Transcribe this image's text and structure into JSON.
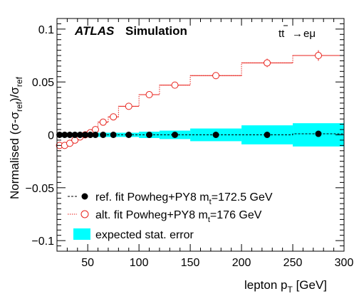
{
  "chart_data": {
    "type": "scatter",
    "title": "",
    "brand": {
      "bold_italic": "ATLAS",
      "rest": "Simulation"
    },
    "process": {
      "main": "tt",
      "arrow": "→",
      "final": "eμ"
    },
    "ylabel": {
      "main": "Normalised (σ-σ",
      "sub1": "ref",
      "mid": ")/σ",
      "sub2": "ref"
    },
    "xlabel": {
      "main": "lepton p",
      "sub": "T",
      "unit": " [GeV]"
    },
    "xlim": [
      20,
      300
    ],
    "ylim": [
      -0.11,
      0.11
    ],
    "xticks": [
      50,
      100,
      150,
      200,
      250,
      300
    ],
    "yticks": [
      -0.1,
      -0.05,
      0,
      0.05,
      0.1
    ],
    "ytick_labels": [
      "−0.1",
      "−0.05",
      "0",
      "0.05",
      "0.1"
    ],
    "xtick_labels": [
      "50",
      "100",
      "150",
      "200",
      "250",
      "300"
    ],
    "bins": [
      [
        20,
        25
      ],
      [
        25,
        30
      ],
      [
        30,
        35
      ],
      [
        35,
        40
      ],
      [
        40,
        45
      ],
      [
        45,
        50
      ],
      [
        50,
        55
      ],
      [
        55,
        60
      ],
      [
        60,
        70
      ],
      [
        70,
        80
      ],
      [
        80,
        100
      ],
      [
        100,
        120
      ],
      [
        120,
        150
      ],
      [
        150,
        200
      ],
      [
        200,
        250
      ],
      [
        250,
        300
      ]
    ],
    "centers": [
      22.5,
      27.5,
      32.5,
      37.5,
      42.5,
      47.5,
      52.5,
      57.5,
      65,
      75,
      90,
      110,
      135,
      175,
      225,
      275
    ],
    "stat_error": [
      0.002,
      0.002,
      0.002,
      0.002,
      0.002,
      0.002,
      0.002,
      0.002,
      0.002,
      0.002,
      0.002,
      0.003,
      0.004,
      0.006,
      0.009,
      0.011
    ],
    "series": [
      {
        "name": "ref. fit Powheg+PY8 m",
        "name_sub": "t",
        "name_tail": "=172.5 GeV",
        "color": "#000000",
        "values": [
          0,
          0,
          0,
          0,
          0,
          0,
          0,
          0,
          0,
          0,
          0,
          0,
          0,
          0,
          0,
          0.001
        ],
        "errors": [
          0,
          0,
          0,
          0,
          0,
          0,
          0,
          0,
          0,
          0,
          0,
          0,
          0,
          0,
          0,
          0
        ]
      },
      {
        "name": "alt. fit Powheg+PY8 m",
        "name_sub": "t",
        "name_tail": "=176 GeV",
        "color": "#e8221c",
        "values": [
          -0.01,
          -0.01,
          -0.008,
          -0.005,
          -0.002,
          0.0,
          0.002,
          0.005,
          0.012,
          0.017,
          0.027,
          0.038,
          0.047,
          0.056,
          0.068,
          0.075
        ],
        "errors": [
          0.002,
          0.002,
          0.002,
          0.002,
          0.002,
          0.002,
          0.002,
          0.002,
          0.002,
          0.002,
          0.002,
          0.002,
          0.002,
          0.003,
          0.004,
          0.005
        ]
      }
    ],
    "legend": {
      "position": "bottom-left",
      "stat_label": "expected stat. error"
    },
    "colors": {
      "stat_band": "#00ffff",
      "ref": "#000000",
      "alt": "#e8221c"
    }
  }
}
